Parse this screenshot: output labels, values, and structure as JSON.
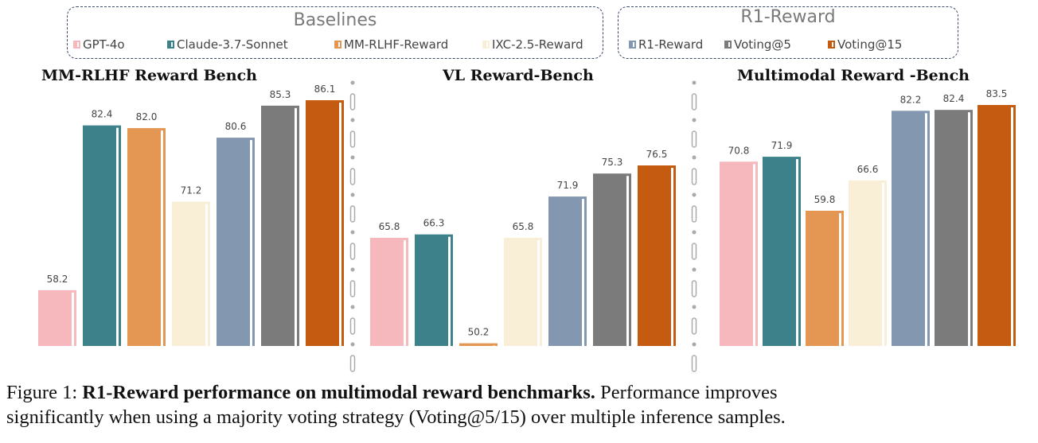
{
  "legend": {
    "groups": [
      {
        "title": "Baselines",
        "items": [
          "GPT-4o",
          "Claude-3.7-Sonnet",
          "MM-RLHF-Reward",
          "IXC-2.5-Reward"
        ]
      },
      {
        "title": "R1-Reward",
        "items": [
          "R1-Reward",
          "Voting@5",
          "Voting@15"
        ]
      }
    ]
  },
  "colors": {
    "GPT-4o": "#f6b7bd",
    "Claude-3.7-Sonnet": "#3d818b",
    "MM-RLHF-Reward": "#e39752",
    "IXC-2.5-Reward": "#f9efd6",
    "R1-Reward": "#8497b0",
    "Voting@5": "#7b7b7b",
    "Voting@15": "#c55a11"
  },
  "chart_data": [
    {
      "type": "bar",
      "title": "MM-RLHF Reward Bench",
      "categories": [
        "GPT-4o",
        "Claude-3.7-Sonnet",
        "MM-RLHF-Reward",
        "IXC-2.5-Reward",
        "R1-Reward",
        "Voting@5",
        "Voting@15"
      ],
      "values": [
        58.2,
        82.4,
        82.0,
        71.2,
        80.6,
        85.3,
        86.1
      ],
      "ylim": [
        50,
        87
      ],
      "grid": false,
      "legend": "top"
    },
    {
      "type": "bar",
      "title": "VL Reward-Bench",
      "categories": [
        "GPT-4o",
        "Claude-3.7-Sonnet",
        "MM-RLHF-Reward",
        "IXC-2.5-Reward",
        "R1-Reward",
        "Voting@5",
        "Voting@15"
      ],
      "values": [
        65.8,
        66.3,
        50.2,
        65.8,
        71.9,
        75.3,
        76.5
      ],
      "ylim": [
        49.8,
        77
      ],
      "grid": false,
      "legend": "top"
    },
    {
      "type": "bar",
      "title": "Multimodal Reward -Bench",
      "categories": [
        "GPT-4o",
        "Claude-3.7-Sonnet",
        "MM-RLHF-Reward",
        "IXC-2.5-Reward",
        "R1-Reward",
        "Voting@5",
        "Voting@15"
      ],
      "values": [
        70.8,
        71.9,
        59.8,
        66.6,
        82.2,
        82.4,
        83.5
      ],
      "ylim": [
        29.5,
        84
      ],
      "grid": false,
      "legend": "top"
    }
  ],
  "caption": {
    "label": "Figure 1: ",
    "bold": "R1-Reward performance on multimodal reward benchmarks.",
    "text1": " Performance improves",
    "text2": "significantly when using a majority voting strategy (Voting@5/15) over multiple inference samples."
  }
}
